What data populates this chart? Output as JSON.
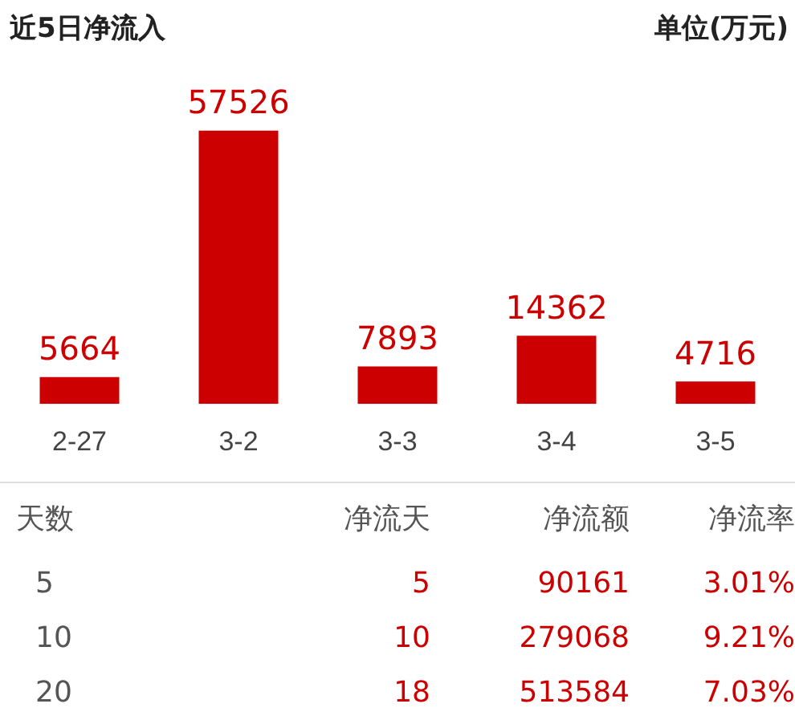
{
  "chart_data": {
    "type": "bar",
    "title": "近5日净流入",
    "ylabel": "单位(万元)",
    "categories": [
      "2-27",
      "3-2",
      "3-3",
      "3-4",
      "3-5"
    ],
    "values": [
      5664,
      57526,
      7893,
      14362,
      4716
    ],
    "color": "#cc0000",
    "data_labels": true,
    "grid": false,
    "legend": false,
    "annotations": [
      "天数",
      "净流天",
      "净流额",
      "净流率",
      "5",
      "5",
      "90161",
      "3.01%",
      "10",
      "10",
      "279068",
      "9.21%",
      "20",
      "18",
      "513584",
      "7.03%"
    ]
  }
}
